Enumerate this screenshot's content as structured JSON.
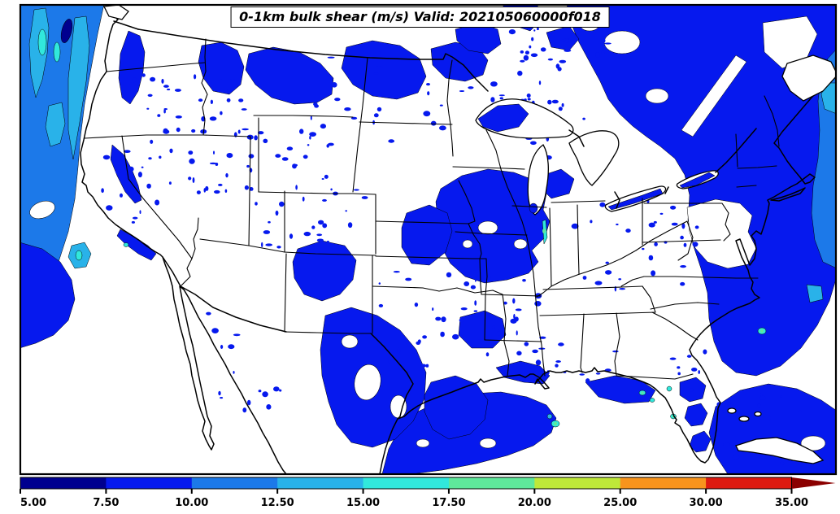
{
  "header": {
    "title": "0-1km bulk shear (m/s) Valid: 202105060000f018"
  },
  "chart_data": {
    "type": "heatmap",
    "subtype": "filled-contour-map",
    "title": "0-1km bulk shear (m/s)",
    "valid_label": "Valid: 202105060000f018",
    "units": "m/s",
    "region": "Continental United States",
    "legend_position": "bottom",
    "colorbar": {
      "orientation": "horizontal",
      "extend_max": true,
      "under_color": "#FFFFFF",
      "over_color": "#8B0000",
      "tick_labels": [
        "5.00",
        "7.50",
        "10.00",
        "12.50",
        "15.00",
        "17.50",
        "20.00",
        "25.00",
        "30.00",
        "35.00"
      ],
      "tick_values": [
        5.0,
        7.5,
        10.0,
        12.5,
        15.0,
        17.5,
        20.0,
        25.0,
        30.0,
        35.0
      ],
      "segments": [
        {
          "from": 5.0,
          "to": 7.5,
          "color": "#00008F"
        },
        {
          "from": 7.5,
          "to": 10.0,
          "color": "#0619EE"
        },
        {
          "from": 10.0,
          "to": 12.5,
          "color": "#1C79E9"
        },
        {
          "from": 12.5,
          "to": 15.0,
          "color": "#29B2E9"
        },
        {
          "from": 15.0,
          "to": 17.5,
          "color": "#31E8DC"
        },
        {
          "from": 17.5,
          "to": 20.0,
          "color": "#5FE89B"
        },
        {
          "from": 20.0,
          "to": 25.0,
          "color": "#BEE839"
        },
        {
          "from": 25.0,
          "to": 30.0,
          "color": "#F8941D"
        },
        {
          "from": 30.0,
          "to": 35.0,
          "color": "#DD1A10"
        }
      ]
    },
    "map_colors": {
      "background_land": "#FFFFFF",
      "borders": "#000000",
      "frame": "#000000"
    }
  }
}
